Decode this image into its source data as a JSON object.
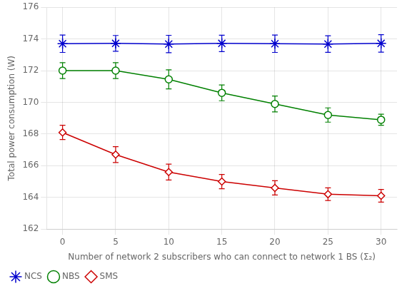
{
  "chart_data": {
    "type": "line",
    "xlabel": "Number of network 2 subscribers who can connect to network 1 BS (Σ₂)",
    "ylabel": "Total power consumption (W)",
    "x": [
      0,
      5,
      10,
      15,
      20,
      25,
      30
    ],
    "series": [
      {
        "name": "NCS",
        "color": "#0000cd",
        "marker": "star",
        "values": [
          173.7,
          173.72,
          173.68,
          173.72,
          173.7,
          173.68,
          173.72
        ],
        "errors": [
          0.55,
          0.5,
          0.55,
          0.52,
          0.55,
          0.52,
          0.55
        ]
      },
      {
        "name": "NBS",
        "color": "#008000",
        "marker": "circle",
        "values": [
          172.0,
          172.0,
          171.45,
          170.6,
          169.9,
          169.2,
          168.9
        ],
        "errors": [
          0.5,
          0.5,
          0.6,
          0.5,
          0.5,
          0.45,
          0.35
        ]
      },
      {
        "name": "SMS",
        "color": "#cc0000",
        "marker": "diamond",
        "values": [
          168.1,
          166.7,
          165.6,
          165.0,
          164.6,
          164.2,
          164.1
        ],
        "errors": [
          0.45,
          0.5,
          0.5,
          0.45,
          0.45,
          0.4,
          0.4
        ]
      }
    ],
    "xlim": [
      -1.5,
      31.5
    ],
    "xticks": [
      0,
      5,
      10,
      15,
      20,
      25,
      30
    ],
    "ylim": [
      162,
      176
    ],
    "yticks": [
      162,
      164,
      166,
      168,
      170,
      172,
      174,
      176
    ],
    "grid": true,
    "legend": "lower left"
  }
}
